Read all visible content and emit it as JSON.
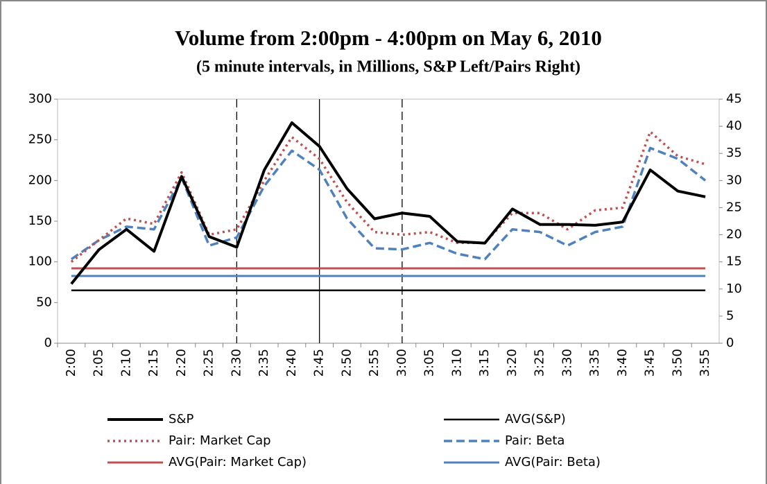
{
  "chart_data": {
    "type": "line",
    "title": "Volume from 2:00pm - 4:00pm on May 6, 2010",
    "subtitle": "(5 minute intervals, in Millions, S&P Left/Pairs Right)",
    "categories": [
      "2:00",
      "2:05",
      "2:10",
      "2:15",
      "2:20",
      "2:25",
      "2:30",
      "2:35",
      "2:40",
      "2:45",
      "2:50",
      "2:55",
      "3:00",
      "3:05",
      "3:10",
      "3:15",
      "3:20",
      "3:25",
      "3:30",
      "3:35",
      "3:40",
      "3:45",
      "3:50",
      "3:55"
    ],
    "ylim": [
      0,
      300
    ],
    "yticks": [
      0,
      50,
      100,
      150,
      200,
      250,
      300
    ],
    "y2lim": [
      0,
      45
    ],
    "y2ticks": [
      0,
      5,
      10,
      15,
      20,
      25,
      30,
      35,
      40,
      45
    ],
    "vertical_lines": [
      {
        "at": "2:30",
        "style": "dashed"
      },
      {
        "at": "2:45",
        "style": "solid"
      },
      {
        "at": "3:00",
        "style": "dashed"
      }
    ],
    "series": [
      {
        "name": "S&P",
        "color": "#000000",
        "style": "solid",
        "width": 4,
        "axis": "y",
        "values": [
          73,
          115,
          140,
          113,
          205,
          131,
          118,
          213,
          271,
          242,
          190,
          153,
          160,
          156,
          125,
          123,
          165,
          146,
          146,
          145,
          149,
          213,
          187,
          180
        ]
      },
      {
        "name": "AVG(S&P)",
        "color": "#000000",
        "style": "solid",
        "width": 2.5,
        "axis": "y",
        "values": [
          65,
          65,
          65,
          65,
          65,
          65,
          65,
          65,
          65,
          65,
          65,
          65,
          65,
          65,
          65,
          65,
          65,
          65,
          65,
          65,
          65,
          65,
          65,
          65
        ]
      },
      {
        "name": "Pair: Market Cap",
        "color": "#c0504d",
        "style": "dotted",
        "width": 3.5,
        "axis": "y2",
        "values": [
          15,
          19,
          23,
          22,
          31.5,
          20,
          21,
          30,
          38,
          34,
          26,
          20.5,
          20,
          20.5,
          18.5,
          18.5,
          24,
          24,
          21,
          24.5,
          25,
          39,
          34.5,
          33
        ]
      },
      {
        "name": "Pair: Beta",
        "color": "#4f81bd",
        "style": "dashed",
        "width": 3.5,
        "axis": "y2",
        "values": [
          15.5,
          19,
          21.5,
          21,
          30.5,
          18,
          19.5,
          29,
          35.5,
          32,
          23,
          17.5,
          17.3,
          18.5,
          16.5,
          15.5,
          21,
          20.5,
          18,
          20.5,
          21.5,
          36,
          34,
          30
        ]
      },
      {
        "name": "AVG(Pair: Market Cap)",
        "color": "#c0504d",
        "style": "solid",
        "width": 3,
        "axis": "y2",
        "values": [
          13.8,
          13.8,
          13.8,
          13.8,
          13.8,
          13.8,
          13.8,
          13.8,
          13.8,
          13.8,
          13.8,
          13.8,
          13.8,
          13.8,
          13.8,
          13.8,
          13.8,
          13.8,
          13.8,
          13.8,
          13.8,
          13.8,
          13.8,
          13.8
        ]
      },
      {
        "name": "AVG(Pair: Beta)",
        "color": "#4f81bd",
        "style": "solid",
        "width": 3,
        "axis": "y2",
        "values": [
          12.4,
          12.4,
          12.4,
          12.4,
          12.4,
          12.4,
          12.4,
          12.4,
          12.4,
          12.4,
          12.4,
          12.4,
          12.4,
          12.4,
          12.4,
          12.4,
          12.4,
          12.4,
          12.4,
          12.4,
          12.4,
          12.4,
          12.4,
          12.4
        ]
      }
    ]
  }
}
